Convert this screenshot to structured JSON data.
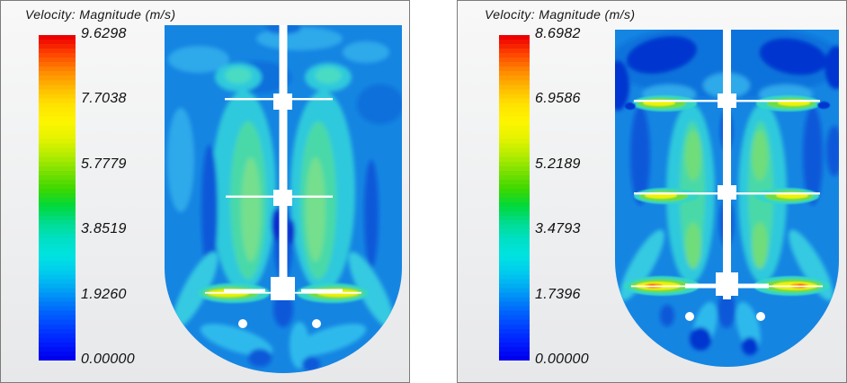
{
  "app": {
    "description": "Side-by-side CFD post-processing scenes: velocity magnitude contour plots of a stirred tank reactor (dished bottom, central shaft, three impellers, two sparger holes), each with a rainbow colorbar legend."
  },
  "colorbar_palette": [
    "#ee0000",
    "#ff4400",
    "#ff8800",
    "#ffbb00",
    "#ffe300",
    "#fdf500",
    "#e4f300",
    "#b4ec00",
    "#78e000",
    "#3cd800",
    "#00d93c",
    "#00dc90",
    "#00e0c8",
    "#00e2e2",
    "#00c9ee",
    "#00a0f4",
    "#0070fa",
    "#0046ff",
    "#0020ff",
    "#0000ee"
  ],
  "panels": [
    {
      "title": "Velocity: Magnitude (m/s)",
      "legend_ticks": [
        "9.6298",
        "7.7038",
        "5.7779",
        "3.8519",
        "1.9260",
        "0.00000"
      ]
    },
    {
      "title": "Velocity: Magnitude (m/s)",
      "legend_ticks": [
        "8.6982",
        "6.9586",
        "5.2189",
        "3.4793",
        "1.7396",
        "0.00000"
      ]
    }
  ],
  "chart_data": [
    {
      "type": "heatmap",
      "title": "Velocity: Magnitude (m/s)",
      "unit": "m/s",
      "colorbar": {
        "min": 0.0,
        "max": 9.6298,
        "ticks": [
          9.6298,
          7.7038,
          5.7779,
          3.8519,
          1.926,
          0.0
        ],
        "orientation": "vertical",
        "palette": "rainbow blue-to-red, banded levels",
        "position": "left of scene"
      },
      "scene": "Stirred tank cross-section, flat top, hemispherical bottom; white central shaft with three impellers and two sparger holes below the bottom impeller.",
      "features": [
        "bulk flow mostly 0.5-2.5 m/s (blue)",
        "two cyan/green upwash plumes (~2.5-4.5 m/s) beside shaft between top and bottom impellers",
        "bottom impeller blade-tip jets reach ~7-8 m/s (yellow)",
        "dark blue low-velocity streaks (<1 m/s) beside plumes and under hubs"
      ]
    },
    {
      "type": "heatmap",
      "title": "Velocity: Magnitude (m/s)",
      "unit": "m/s",
      "colorbar": {
        "min": 0.0,
        "max": 8.6982,
        "ticks": [
          8.6982,
          6.9586,
          5.2189,
          3.4793,
          1.7396,
          0.0
        ],
        "orientation": "vertical",
        "palette": "rainbow blue-to-red, banded levels",
        "position": "left of scene"
      },
      "scene": "Same stirred tank geometry; all three impellers produce distinct blade-tip jets.",
      "features": [
        "near-stagnant navy pockets (<0.5 m/s) at the free surface corners",
        "yellow-green tip jets (~5-7 m/s) at top and middle impellers",
        "bottom impeller tip jets reach ~8 m/s with orange/red cores",
        "cyan/green circulation columns beside the shaft"
      ]
    }
  ]
}
